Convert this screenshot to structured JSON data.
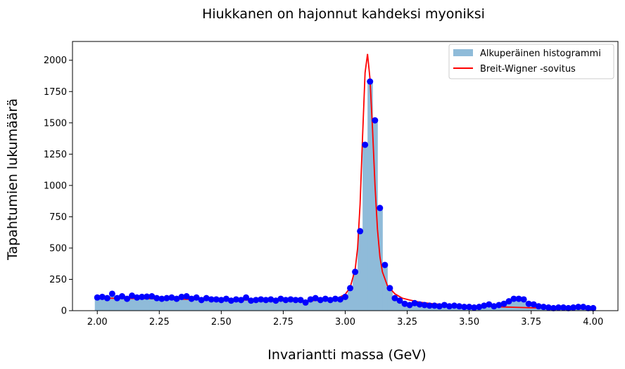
{
  "chart_data": {
    "type": "bar",
    "title": "Hiukkanen on hajonnut kahdeksi myoniksi",
    "xlabel": "Invariantti massa (GeV)",
    "ylabel": "Tapahtumien lukumäärä",
    "xlim": [
      1.9,
      4.1
    ],
    "ylim": [
      0,
      2150
    ],
    "xticks": [
      "2.00",
      "2.25",
      "2.50",
      "2.75",
      "3.00",
      "3.25",
      "3.50",
      "3.75",
      "4.00"
    ],
    "yticks": [
      "0",
      "250",
      "500",
      "750",
      "1000",
      "1250",
      "1500",
      "1750",
      "2000"
    ],
    "grid": false,
    "legend_position": "top-right",
    "legend": [
      "Alkuperäinen histogrammi",
      "Breit-Wigner -sovitus"
    ],
    "colors": {
      "histogram": "#8fbbd9",
      "points": "#0000ff",
      "fit": "#ff0000"
    },
    "bin_centers": [
      2.0,
      2.02,
      2.04,
      2.06,
      2.08,
      2.1,
      2.12,
      2.14,
      2.16,
      2.18,
      2.2,
      2.22,
      2.24,
      2.26,
      2.28,
      2.3,
      2.32,
      2.34,
      2.36,
      2.38,
      2.4,
      2.42,
      2.44,
      2.46,
      2.48,
      2.5,
      2.52,
      2.54,
      2.56,
      2.58,
      2.6,
      2.62,
      2.64,
      2.66,
      2.68,
      2.7,
      2.72,
      2.74,
      2.76,
      2.78,
      2.8,
      2.82,
      2.84,
      2.86,
      2.88,
      2.9,
      2.92,
      2.94,
      2.96,
      2.98,
      3.0,
      3.02,
      3.04,
      3.06,
      3.08,
      3.1,
      3.12,
      3.14,
      3.16,
      3.18,
      3.2,
      3.22,
      3.24,
      3.26,
      3.28,
      3.3,
      3.32,
      3.34,
      3.36,
      3.38,
      3.4,
      3.42,
      3.44,
      3.46,
      3.48,
      3.5,
      3.52,
      3.54,
      3.56,
      3.58,
      3.6,
      3.62,
      3.64,
      3.66,
      3.68,
      3.7,
      3.72,
      3.74,
      3.76,
      3.78,
      3.8,
      3.82,
      3.84,
      3.86,
      3.88,
      3.9,
      3.92,
      3.94,
      3.96,
      3.98,
      4.0
    ],
    "counts": [
      105,
      110,
      100,
      135,
      100,
      115,
      95,
      120,
      105,
      110,
      112,
      115,
      100,
      95,
      100,
      105,
      95,
      110,
      115,
      95,
      105,
      85,
      100,
      90,
      90,
      85,
      95,
      80,
      90,
      85,
      105,
      80,
      85,
      90,
      85,
      90,
      80,
      95,
      85,
      90,
      85,
      85,
      65,
      90,
      100,
      85,
      95,
      85,
      95,
      90,
      110,
      180,
      310,
      635,
      1325,
      1830,
      1520,
      820,
      365,
      180,
      100,
      80,
      55,
      45,
      60,
      50,
      45,
      40,
      40,
      35,
      45,
      35,
      40,
      35,
      30,
      30,
      25,
      30,
      40,
      50,
      35,
      45,
      55,
      75,
      95,
      95,
      90,
      55,
      50,
      35,
      30,
      25,
      20,
      25,
      25,
      20,
      25,
      30,
      30,
      20,
      20
    ],
    "fit_curve": {
      "x": [
        2.0,
        2.1,
        2.2,
        2.3,
        2.4,
        2.5,
        2.6,
        2.7,
        2.75,
        2.8,
        2.85,
        2.9,
        2.94,
        2.97,
        3.0,
        3.02,
        3.04,
        3.05,
        3.06,
        3.07,
        3.08,
        3.09,
        3.1,
        3.11,
        3.12,
        3.13,
        3.14,
        3.15,
        3.17,
        3.2,
        3.23,
        3.26,
        3.3,
        3.35,
        3.4,
        3.5,
        3.6,
        3.7,
        3.8,
        3.9,
        4.0
      ],
      "y": [
        100,
        98,
        96,
        93,
        90,
        87,
        85,
        82,
        80,
        79,
        79,
        82,
        88,
        100,
        130,
        185,
        330,
        500,
        850,
        1400,
        1900,
        2050,
        1850,
        1450,
        1000,
        650,
        430,
        310,
        200,
        135,
        100,
        85,
        68,
        56,
        48,
        38,
        32,
        26,
        21,
        17,
        13
      ]
    }
  }
}
